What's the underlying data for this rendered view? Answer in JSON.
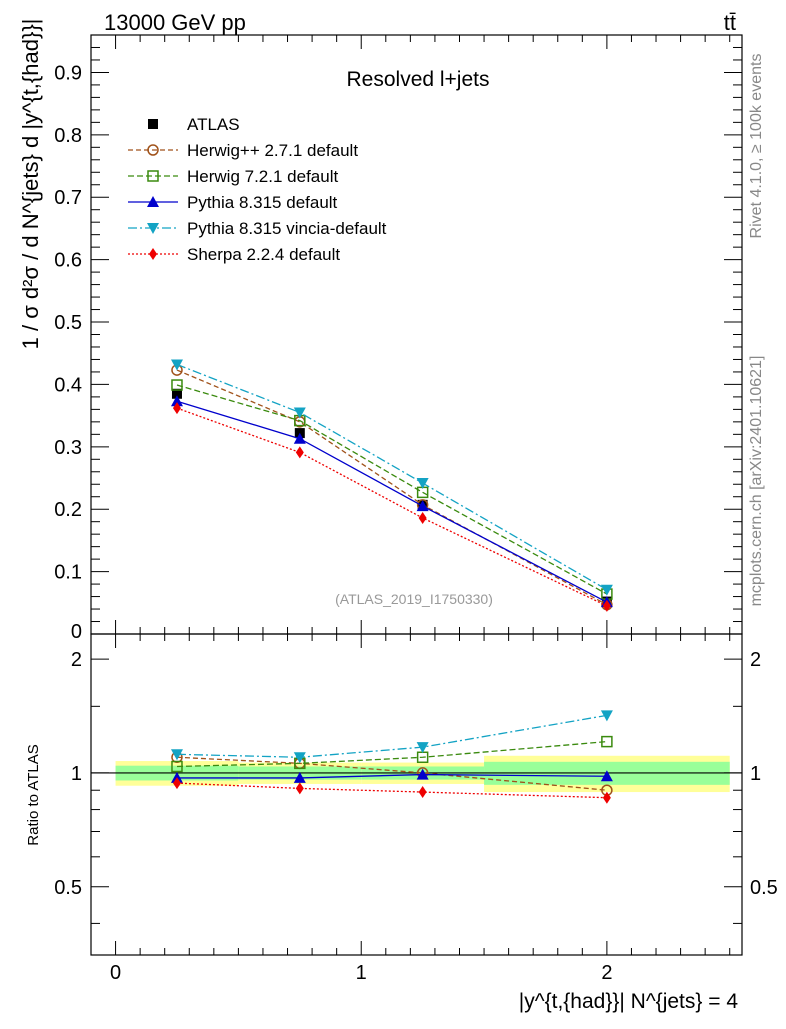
{
  "header": {
    "energy_label": "13000 GeV pp",
    "process_label": "tt̄",
    "rivet_label": "Rivet 4.1.0, ≥ 100k events",
    "site_label": "mcplots.cern.ch [arXiv:2401.10621]",
    "analysis_id": "(ATLAS_2019_I1750330)"
  },
  "colors": {
    "ATLAS": "#000000",
    "Herwig++ 2.7.1 default": "#a0521a",
    "Herwig 7.2.1 default": "#3a8a0e",
    "Pythia 8.315 default": "#0000cc",
    "Pythia 8.315 vincia-default": "#13a3c4",
    "Sherpa 2.2.4 default": "#ee0000",
    "band_inner": "#99ff99",
    "band_outer": "#ffff99"
  },
  "chart_data": [
    {
      "type": "line",
      "panel": "main",
      "title": "Resolved l+jets",
      "ylabel": "1 / σ d²σ / d N^{jets} d |y^{t,{had}}|",
      "xlabel": "",
      "xlim": [
        -0.1,
        2.55
      ],
      "ylim": [
        0,
        0.96
      ],
      "yticks": [
        0.1,
        0.2,
        0.3,
        0.4,
        0.5,
        0.6,
        0.7,
        0.8,
        0.9
      ],
      "ytick_labels": [
        "0.1",
        "0.2",
        "0.3",
        "0.4",
        "0.5",
        "0.6",
        "0.7",
        "0.8",
        "0.9"
      ],
      "y_bottom_label": "0",
      "legend_position": "top-left",
      "x": [
        0.25,
        0.75,
        1.25,
        2.0
      ],
      "series": [
        {
          "name": "ATLAS",
          "values": [
            0.385,
            0.322,
            0.207,
            0.052
          ]
        },
        {
          "name": "Herwig++ 2.7.1 default",
          "values": [
            0.423,
            0.34,
            0.207,
            0.047
          ]
        },
        {
          "name": "Herwig 7.2.1 default",
          "values": [
            0.399,
            0.342,
            0.227,
            0.064
          ]
        },
        {
          "name": "Pythia 8.315 default",
          "values": [
            0.373,
            0.313,
            0.205,
            0.051
          ]
        },
        {
          "name": "Pythia 8.315 vincia-default",
          "values": [
            0.432,
            0.355,
            0.242,
            0.071
          ]
        },
        {
          "name": "Sherpa 2.2.4 default",
          "values": [
            0.362,
            0.291,
            0.186,
            0.045
          ]
        }
      ]
    },
    {
      "type": "line",
      "panel": "ratio",
      "ylabel": "Ratio to ATLAS",
      "xlabel": "|y^{t,{had}}| N^{jets} = 4",
      "xlim": [
        -0.1,
        2.55
      ],
      "ylim": [
        0.33,
        2.33
      ],
      "yticks": [
        0.5,
        1,
        2
      ],
      "ytick_labels": [
        "0.5",
        "1",
        "2"
      ],
      "xticks": [
        0,
        1,
        2
      ],
      "xtick_labels": [
        "0",
        "1",
        "2"
      ],
      "x": [
        0.25,
        0.75,
        1.25,
        2.0
      ],
      "bands": {
        "edges": [
          0,
          0.5,
          1.0,
          1.5,
          2.5
        ],
        "inner": [
          [
            0.955,
            1.045
          ],
          [
            0.96,
            1.04
          ],
          [
            0.96,
            1.04
          ],
          [
            0.93,
            1.07
          ]
        ],
        "outer": [
          [
            0.925,
            1.075
          ],
          [
            0.935,
            1.065
          ],
          [
            0.935,
            1.065
          ],
          [
            0.89,
            1.11
          ]
        ]
      },
      "series": [
        {
          "name": "Herwig++ 2.7.1 default",
          "values": [
            1.1,
            1.06,
            1.0,
            0.9
          ]
        },
        {
          "name": "Herwig 7.2.1 default",
          "values": [
            1.04,
            1.06,
            1.1,
            1.21
          ]
        },
        {
          "name": "Pythia 8.315 default",
          "values": [
            0.97,
            0.97,
            0.99,
            0.98
          ]
        },
        {
          "name": "Pythia 8.315 vincia-default",
          "values": [
            1.12,
            1.1,
            1.17,
            1.42
          ]
        },
        {
          "name": "Sherpa 2.2.4 default",
          "values": [
            0.94,
            0.91,
            0.89,
            0.86
          ]
        }
      ]
    }
  ]
}
